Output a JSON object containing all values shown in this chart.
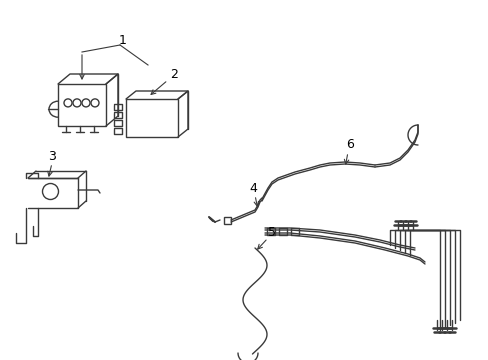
{
  "background_color": "#ffffff",
  "line_color": "#3a3a3a",
  "fig_width": 4.89,
  "fig_height": 3.6,
  "dpi": 100,
  "lw": 1.0
}
